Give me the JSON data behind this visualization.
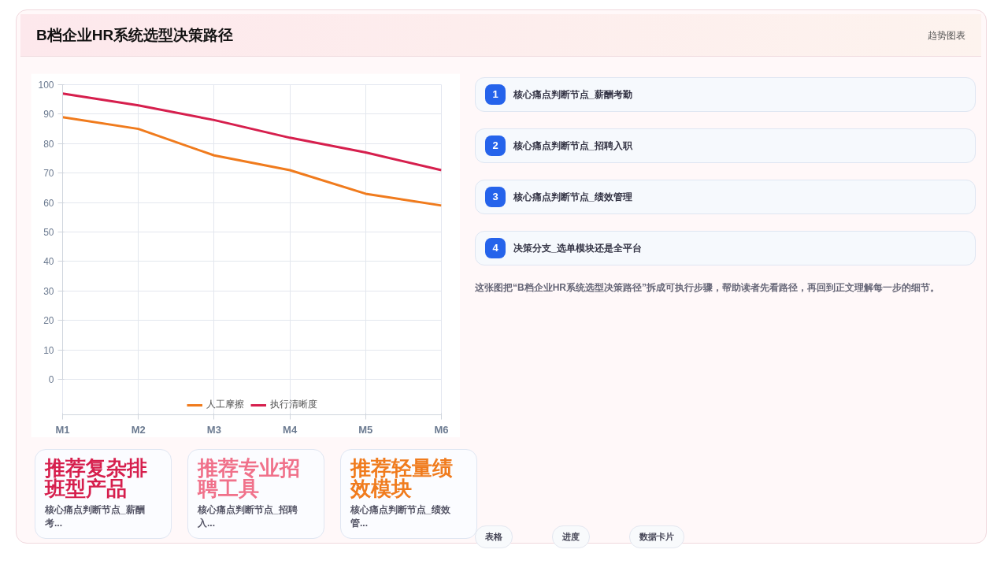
{
  "chart_data": {
    "type": "line",
    "title": "B档企业HR系统选型决策路径",
    "categories": [
      "M1",
      "M2",
      "M3",
      "M4",
      "M5",
      "M6"
    ],
    "series": [
      {
        "name": "人工摩擦",
        "color": "#f07b1d",
        "values": [
          89,
          85,
          76,
          71,
          63,
          59
        ]
      },
      {
        "name": "执行清晰度",
        "color": "#d61f4d",
        "values": [
          97,
          93,
          88,
          82,
          77,
          71
        ]
      }
    ],
    "ylim": [
      0,
      100
    ],
    "yticks": [
      0,
      10,
      20,
      30,
      40,
      50,
      60,
      70,
      80,
      90,
      100
    ],
    "grid": true,
    "legend": "bottom",
    "marker": "none",
    "line_style": "solid",
    "annotations": [
      "趋势图表",
      "1",
      "核心痛点判断节点_薪酬考勤",
      "2",
      "核心痛点判断节点_招聘入职",
      "3",
      "核心痛点判断节点_绩效管理",
      "4",
      "决策分支_选单模块还是全平台",
      "这张图把“B档企业HR系统选型决策路径”拆成可执行步骤，帮助读者先看路径，再回到正文理解每一步的细节。",
      "推荐复杂排班型产品",
      "核心痛点判断节点_薪酬考...",
      "推荐专业招聘工具",
      "核心痛点判断节点_招聘入...",
      "推荐轻量绩效模块",
      "核心痛点判断节点_绩效管...",
      "表格",
      "进度",
      "数据卡片"
    ]
  }
}
